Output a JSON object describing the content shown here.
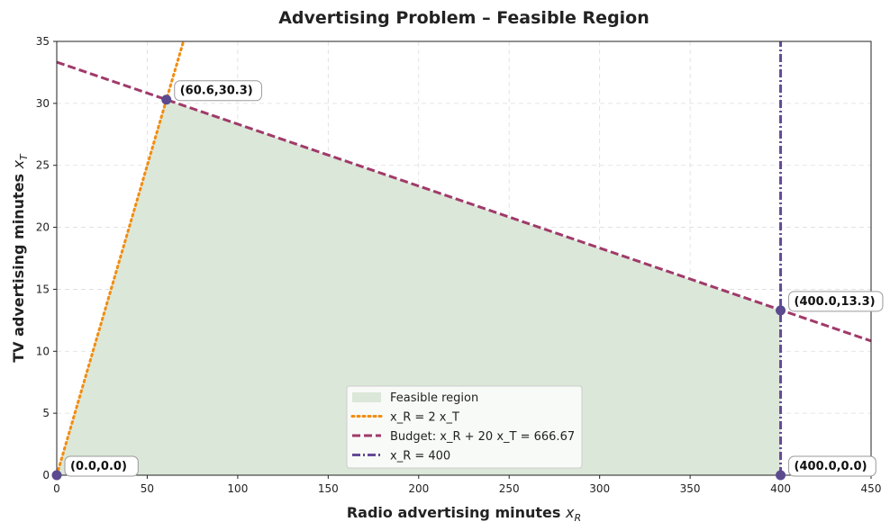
{
  "chart_data": {
    "type": "area",
    "title": "Advertising Problem – Feasible Region",
    "xlabel": "Radio advertising minutes",
    "xlabel_var": "x",
    "xlabel_sub": "R",
    "ylabel": "TV advertising minutes",
    "ylabel_var": "x",
    "ylabel_sub": "T",
    "xlim": [
      0,
      450
    ],
    "ylim": [
      0,
      35
    ],
    "xticks": [
      0,
      50,
      100,
      150,
      200,
      250,
      300,
      350,
      400,
      450
    ],
    "yticks": [
      0,
      5,
      10,
      15,
      20,
      25,
      30,
      35
    ],
    "grid": true,
    "legend_position": "bottom-center",
    "feasible_region": {
      "name": "Feasible region",
      "color": "#dbe7d8",
      "vertices": [
        [
          0,
          0
        ],
        [
          60.6,
          30.3
        ],
        [
          400,
          13.3
        ],
        [
          400,
          0
        ]
      ]
    },
    "series": [
      {
        "name": "x_R = 2 x_T",
        "style": "dotted",
        "color": "#f28c0f",
        "points": [
          [
            0,
            0
          ],
          [
            70,
            35
          ]
        ]
      },
      {
        "name": "Budget: x_R + 20 x_T = 666.67",
        "style": "dashed",
        "color": "#a03a6a",
        "points": [
          [
            0,
            33.33
          ],
          [
            450,
            10.83
          ]
        ]
      },
      {
        "name": "x_R = 400",
        "style": "dashdot",
        "color": "#654a96",
        "points": [
          [
            400,
            0
          ],
          [
            400,
            35
          ]
        ]
      }
    ],
    "vertices": [
      {
        "x": 0,
        "y": 0,
        "label": "(0.0,0.0)"
      },
      {
        "x": 60.6,
        "y": 30.3,
        "label": "(60.6,30.3)"
      },
      {
        "x": 400,
        "y": 13.3,
        "label": "(400.0,13.3)"
      },
      {
        "x": 400,
        "y": 0,
        "label": "(400.0,0.0)"
      }
    ],
    "vertex_color": "#5b4a8f"
  }
}
